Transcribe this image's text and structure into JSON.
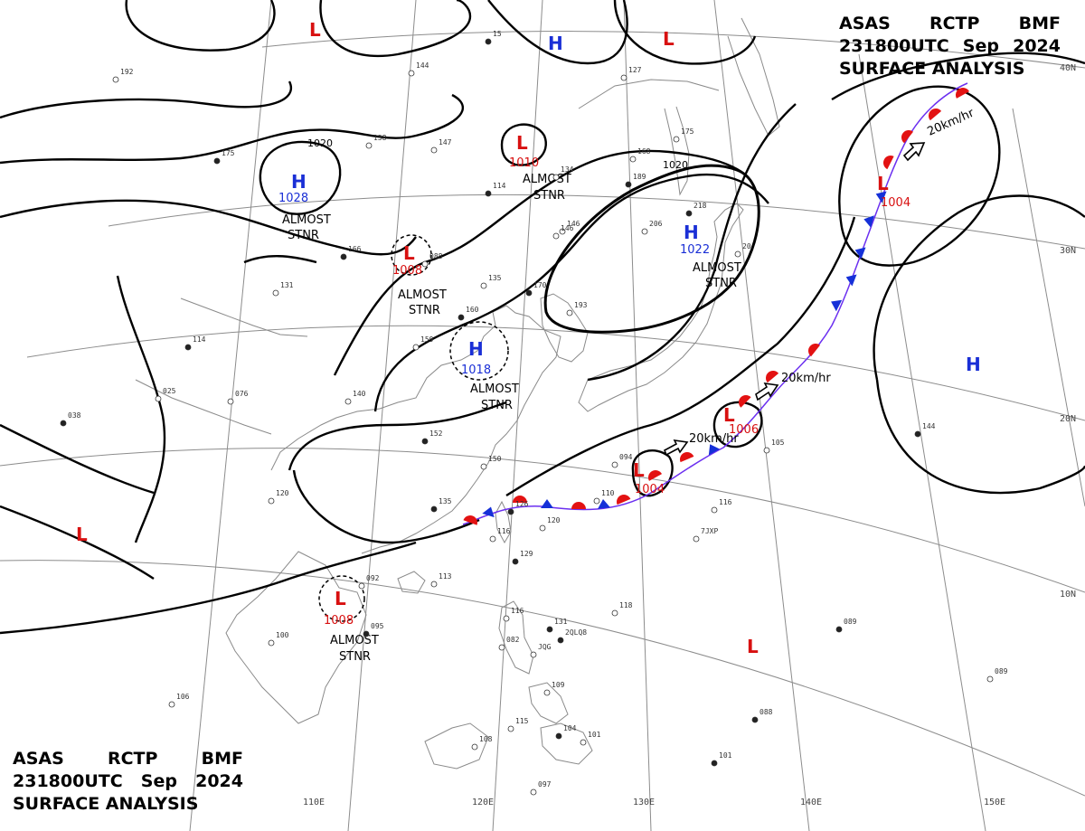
{
  "header": {
    "line1": [
      "ASAS",
      "RCTP",
      "BMF"
    ],
    "line2": [
      "231800UTC",
      "Sep",
      "2024"
    ],
    "line3": "SURFACE ANALYSIS"
  },
  "grid": {
    "lat_labels": [
      "40N",
      "30N",
      "20N",
      "10N"
    ],
    "lon_labels": [
      "110E",
      "120E",
      "130E",
      "140E",
      "150E"
    ]
  },
  "pressure_centers": {
    "high": {
      "symbol": "H",
      "values": [
        "1028",
        "1018",
        "1022"
      ]
    },
    "low": {
      "symbol": "L",
      "values": [
        "1010",
        "1008",
        "1004",
        "1006",
        "1008"
      ]
    }
  },
  "annotations": {
    "almost": "ALMOST",
    "stnr": "STNR",
    "isobar_1020": "1020",
    "speed": "20km/hr"
  },
  "stations": [
    {
      "t": "15"
    },
    {
      "t": "144"
    },
    {
      "t": "192"
    },
    {
      "t": "175"
    },
    {
      "t": "158"
    },
    {
      "t": "147"
    },
    {
      "t": "114"
    },
    {
      "t": "134"
    },
    {
      "t": "168"
    },
    {
      "t": "189"
    },
    {
      "t": "127"
    },
    {
      "t": "175"
    },
    {
      "t": "166"
    },
    {
      "t": "088"
    },
    {
      "t": "135"
    },
    {
      "t": "170"
    },
    {
      "t": "146"
    },
    {
      "t": "206"
    },
    {
      "t": "218"
    },
    {
      "t": "20"
    },
    {
      "t": "131"
    },
    {
      "t": "114"
    },
    {
      "t": "076"
    },
    {
      "t": "025"
    },
    {
      "t": "038"
    },
    {
      "t": "140"
    },
    {
      "t": "159"
    },
    {
      "t": "160"
    },
    {
      "t": "193"
    },
    {
      "t": "146"
    },
    {
      "t": "152"
    },
    {
      "t": "150"
    },
    {
      "t": "120"
    },
    {
      "t": "135"
    },
    {
      "t": "094"
    },
    {
      "t": "110"
    },
    {
      "t": "126"
    },
    {
      "t": "116"
    },
    {
      "t": "105"
    },
    {
      "t": "144"
    },
    {
      "t": "116"
    },
    {
      "t": "120"
    },
    {
      "t": "129"
    },
    {
      "t": "113"
    },
    {
      "t": "092"
    },
    {
      "t": "095"
    },
    {
      "t": "100"
    },
    {
      "t": "116"
    },
    {
      "t": "131"
    },
    {
      "t": "082"
    },
    {
      "t": "118"
    },
    {
      "t": "089"
    },
    {
      "t": "109"
    },
    {
      "t": "106"
    },
    {
      "t": "088"
    },
    {
      "t": "089"
    },
    {
      "t": "115"
    },
    {
      "t": "104"
    },
    {
      "t": "101"
    },
    {
      "t": "108"
    },
    {
      "t": "101"
    },
    {
      "t": "097"
    },
    {
      "t": "7JXP"
    },
    {
      "t": "2QLQ8"
    },
    {
      "t": "JQG"
    }
  ],
  "colors": {
    "high": "#1a2fd6",
    "low": "#d81010",
    "warm_front": "#e31212",
    "cold_front": "#1530d8",
    "isobar": "#000000",
    "grid": "#8c8c8c",
    "coast": "#8a8a8a"
  },
  "icons": {
    "motion": "motion-arrow-icon",
    "front_marker": "front-symbol-icon"
  }
}
